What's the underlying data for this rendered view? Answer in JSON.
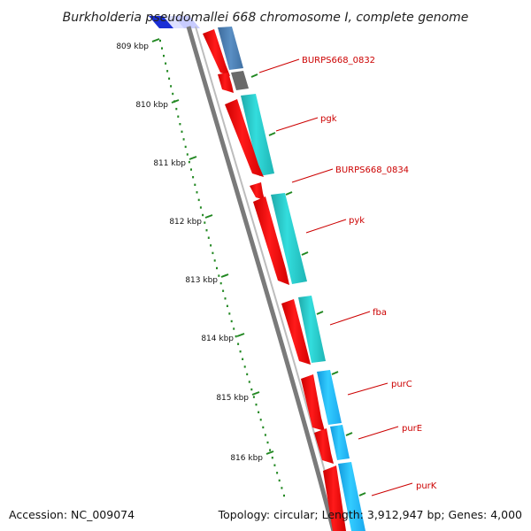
{
  "title": "Burkholderia pseudomallei 668 chromosome I, complete genome",
  "scale_labels": [
    "809 kbp",
    "810 kbp",
    "811 kbp",
    "812 kbp",
    "813 kbp",
    "814 kbp",
    "815 kbp",
    "816 kbp"
  ],
  "genes": [
    {
      "label": "BURPS668_0832",
      "color": "#ff0000"
    },
    {
      "label": "pgk",
      "color": "#ff0000"
    },
    {
      "label": "BURPS668_0834",
      "color": "#ff0000"
    },
    {
      "label": "pyk",
      "color": "#ff0000"
    },
    {
      "label": "fba",
      "color": "#ff0000"
    },
    {
      "label": "purC",
      "color": "#ff0000"
    },
    {
      "label": "purE",
      "color": "#ff0000"
    },
    {
      "label": "purK",
      "color": "#ff0000"
    }
  ],
  "colors": {
    "gene_fill": "#ff0000",
    "cog_teal": "#22cccc",
    "cog_blue": "#22bbff",
    "cog_steel": "#4a7fb5",
    "cog_gray": "#666666",
    "backbone": "#888888",
    "scale_ticks": "#228822",
    "label_red": "#cc0000"
  },
  "footer": {
    "accession": "Accession: NC_009074",
    "stats": "Topology: circular; Length: 3,912,947 bp; Genes: 4,000"
  }
}
